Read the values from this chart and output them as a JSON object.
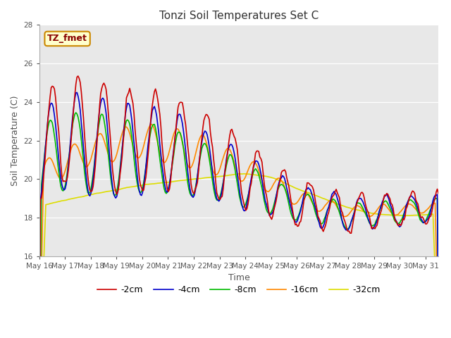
{
  "title": "Tonzi Soil Temperatures Set C",
  "xlabel": "Time",
  "ylabel": "Soil Temperature (C)",
  "ylim": [
    16,
    28
  ],
  "xlim": [
    0,
    15.5
  ],
  "annotation_text": "TZ_fmet",
  "annotation_bg": "#ffffcc",
  "annotation_border": "#cc8800",
  "fig_bg": "#ffffff",
  "plot_bg": "#e8e8e8",
  "series": {
    "2cm": {
      "color": "#cc0000",
      "label": "-2cm"
    },
    "4cm": {
      "color": "#0000cc",
      "label": "-4cm"
    },
    "8cm": {
      "color": "#00bb00",
      "label": "-8cm"
    },
    "16cm": {
      "color": "#ff8800",
      "label": "-16cm"
    },
    "32cm": {
      "color": "#dddd00",
      "label": "-32cm"
    }
  },
  "xtick_labels": [
    "May 16",
    "May 17",
    "May 18",
    "May 19",
    "May 20",
    "May 21",
    "May 22",
    "May 23",
    "May 24",
    "May 25",
    "May 26",
    "May 27",
    "May 28",
    "May 29",
    "May 30",
    "May 31"
  ],
  "ytick_labels": [
    16,
    18,
    20,
    22,
    24,
    26,
    28
  ],
  "title_fontsize": 11,
  "axis_fontsize": 9,
  "tick_fontsize": 7.5,
  "legend_fontsize": 9,
  "linewidth": 1.2
}
